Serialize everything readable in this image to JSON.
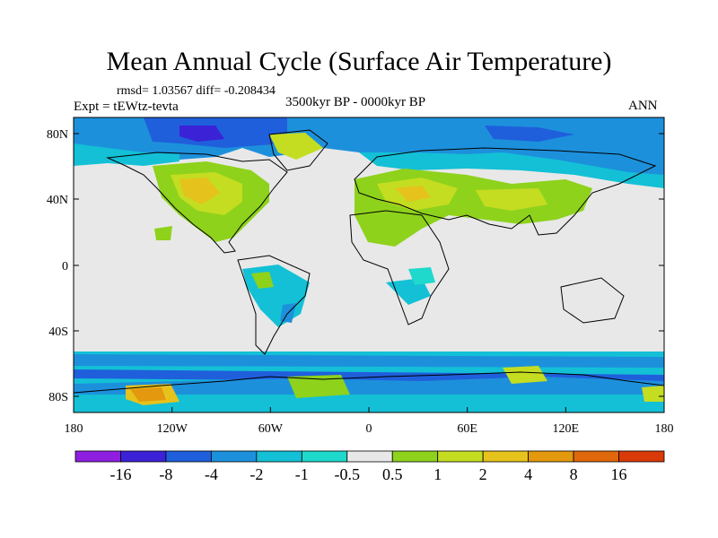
{
  "title": "Mean Annual Cycle (Surface Air Temperature)",
  "stats": "rmsd= 1.03567 diff= -0.208434",
  "experiment": "Expt = tEWtz-tevta",
  "period": "3500kyr BP - 0000kyr BP",
  "season": "ANN",
  "lat_labels": [
    "80N",
    "40N",
    "0",
    "40S",
    "80S"
  ],
  "lon_labels": [
    "180",
    "120W",
    "60W",
    "0",
    "60E",
    "120E",
    "180"
  ],
  "colorbar": {
    "labels": [
      "-16",
      "-8",
      "-4",
      "-2",
      "-1",
      "-0.5",
      "0.5",
      "1",
      "2",
      "4",
      "8",
      "16"
    ],
    "colors": [
      "#8f1fe0",
      "#3b22d6",
      "#1f5fdb",
      "#1d90dc",
      "#13c0d6",
      "#1ed9cc",
      "#e8e8e8",
      "#8ed21c",
      "#c4dd21",
      "#e6c21c",
      "#e4980e",
      "#e0670b",
      "#d93a08"
    ]
  }
}
